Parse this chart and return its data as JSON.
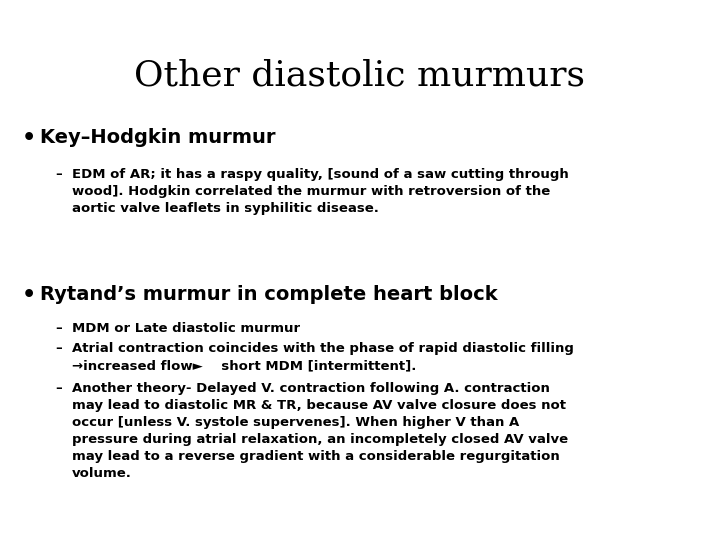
{
  "title": "Other diastolic murmurs",
  "title_fontsize": 26,
  "title_font": "serif",
  "bg_color": "#ffffff",
  "text_color": "#000000",
  "bullet1_header": "Key–Hodgkin murmur",
  "bullet1_sub1": "EDM of AR; it has a raspy quality, [sound of a saw cutting through\nwood]. Hodgkin correlated the murmur with retroversion of the\naortic valve leaflets in syphilitic disease.",
  "bullet2_header": "Rytand’s murmur in complete heart block",
  "bullet2_sub1": "MDM or Late diastolic murmur",
  "bullet2_sub2": "Atrial contraction coincides with the phase of rapid diastolic filling\n→increased flow►    short MDM [intermittent].",
  "bullet2_sub3": "Another theory- Delayed V. contraction following A. contraction\nmay lead to diastolic MR & TR, because AV valve closure does not\noccur [unless V. systole supervenes]. When higher V than A\npressure during atrial relaxation, an incompletely closed AV valve\nmay lead to a reverse gradient with a considerable regurgitation\nvolume.",
  "header_fontsize": 14,
  "sub_fontsize": 9.5,
  "bullet_fontsize": 16
}
